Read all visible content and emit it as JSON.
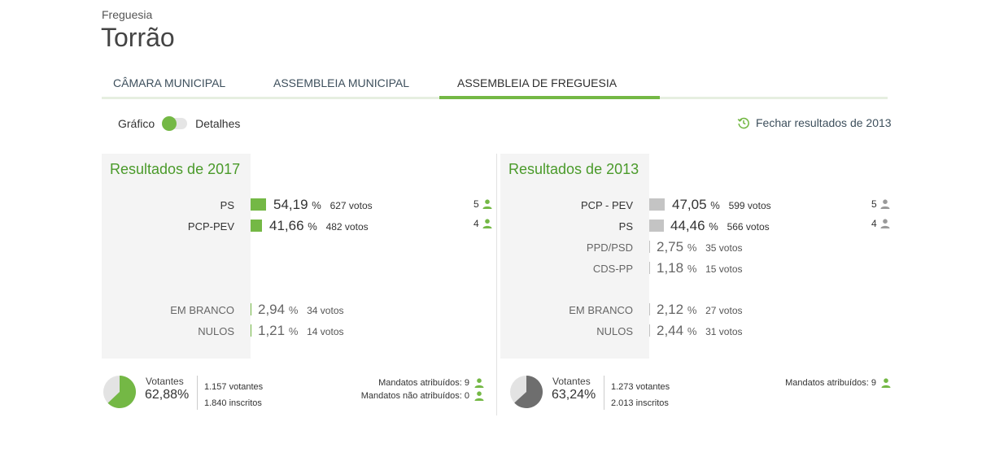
{
  "header": {
    "label": "Freguesia",
    "title": "Torrão"
  },
  "tabs": [
    {
      "label": "CÂMARA MUNICIPAL",
      "active": false
    },
    {
      "label": "ASSEMBLEIA MUNICIPAL",
      "active": false
    },
    {
      "label": "ASSEMBLEIA DE FREGUESIA",
      "active": true
    }
  ],
  "view_toggle": {
    "left_label": "Gráfico",
    "right_label": "Detalhes",
    "selected": "Gráfico"
  },
  "close_link": {
    "label": "Fechar resultados de 2013",
    "icon": "history-icon"
  },
  "colors": {
    "accent": "#74b845",
    "title_green": "#4a9a2a",
    "grey_bar": "#c4c4c4",
    "person_grey": "#9a9a9a"
  },
  "results_2017": {
    "title": "Resultados de 2017",
    "parties": [
      {
        "name": "PS",
        "pct": "54,19",
        "votes": "627 votos",
        "seats": "5"
      },
      {
        "name": "PCP-PEV",
        "pct": "41,66",
        "votes": "482 votos",
        "seats": "4"
      }
    ],
    "blank": {
      "name": "EM BRANCO",
      "pct": "2,94",
      "votes": "34 votos"
    },
    "null": {
      "name": "NULOS",
      "pct": "1,21",
      "votes": "14 votos"
    },
    "turnout": {
      "label": "Votantes",
      "pct": "62,88%",
      "fraction": 0.6288,
      "voters": "1.157 votantes",
      "registered": "1.840 inscritos",
      "mandates_assigned": "Mandatos atribuídos: 9",
      "mandates_unassigned": "Mandatos não atribuídos: 0"
    }
  },
  "results_2013": {
    "title": "Resultados de 2013",
    "parties": [
      {
        "name": "PCP - PEV",
        "pct": "47,05",
        "votes": "599 votos",
        "seats": "5"
      },
      {
        "name": "PS",
        "pct": "44,46",
        "votes": "566 votos",
        "seats": "4"
      },
      {
        "name": "PPD/PSD",
        "pct": "2,75",
        "votes": "35 votos"
      },
      {
        "name": "CDS-PP",
        "pct": "1,18",
        "votes": "15 votos"
      }
    ],
    "blank": {
      "name": "EM BRANCO",
      "pct": "2,12",
      "votes": "27 votos"
    },
    "null": {
      "name": "NULOS",
      "pct": "2,44",
      "votes": "31 votos"
    },
    "turnout": {
      "label": "Votantes",
      "pct": "63,24%",
      "fraction": 0.6324,
      "voters": "1.273 votantes",
      "registered": "2.013 inscritos",
      "mandates_assigned": "Mandatos atribuídos: 9"
    }
  },
  "pct_sign": "%"
}
